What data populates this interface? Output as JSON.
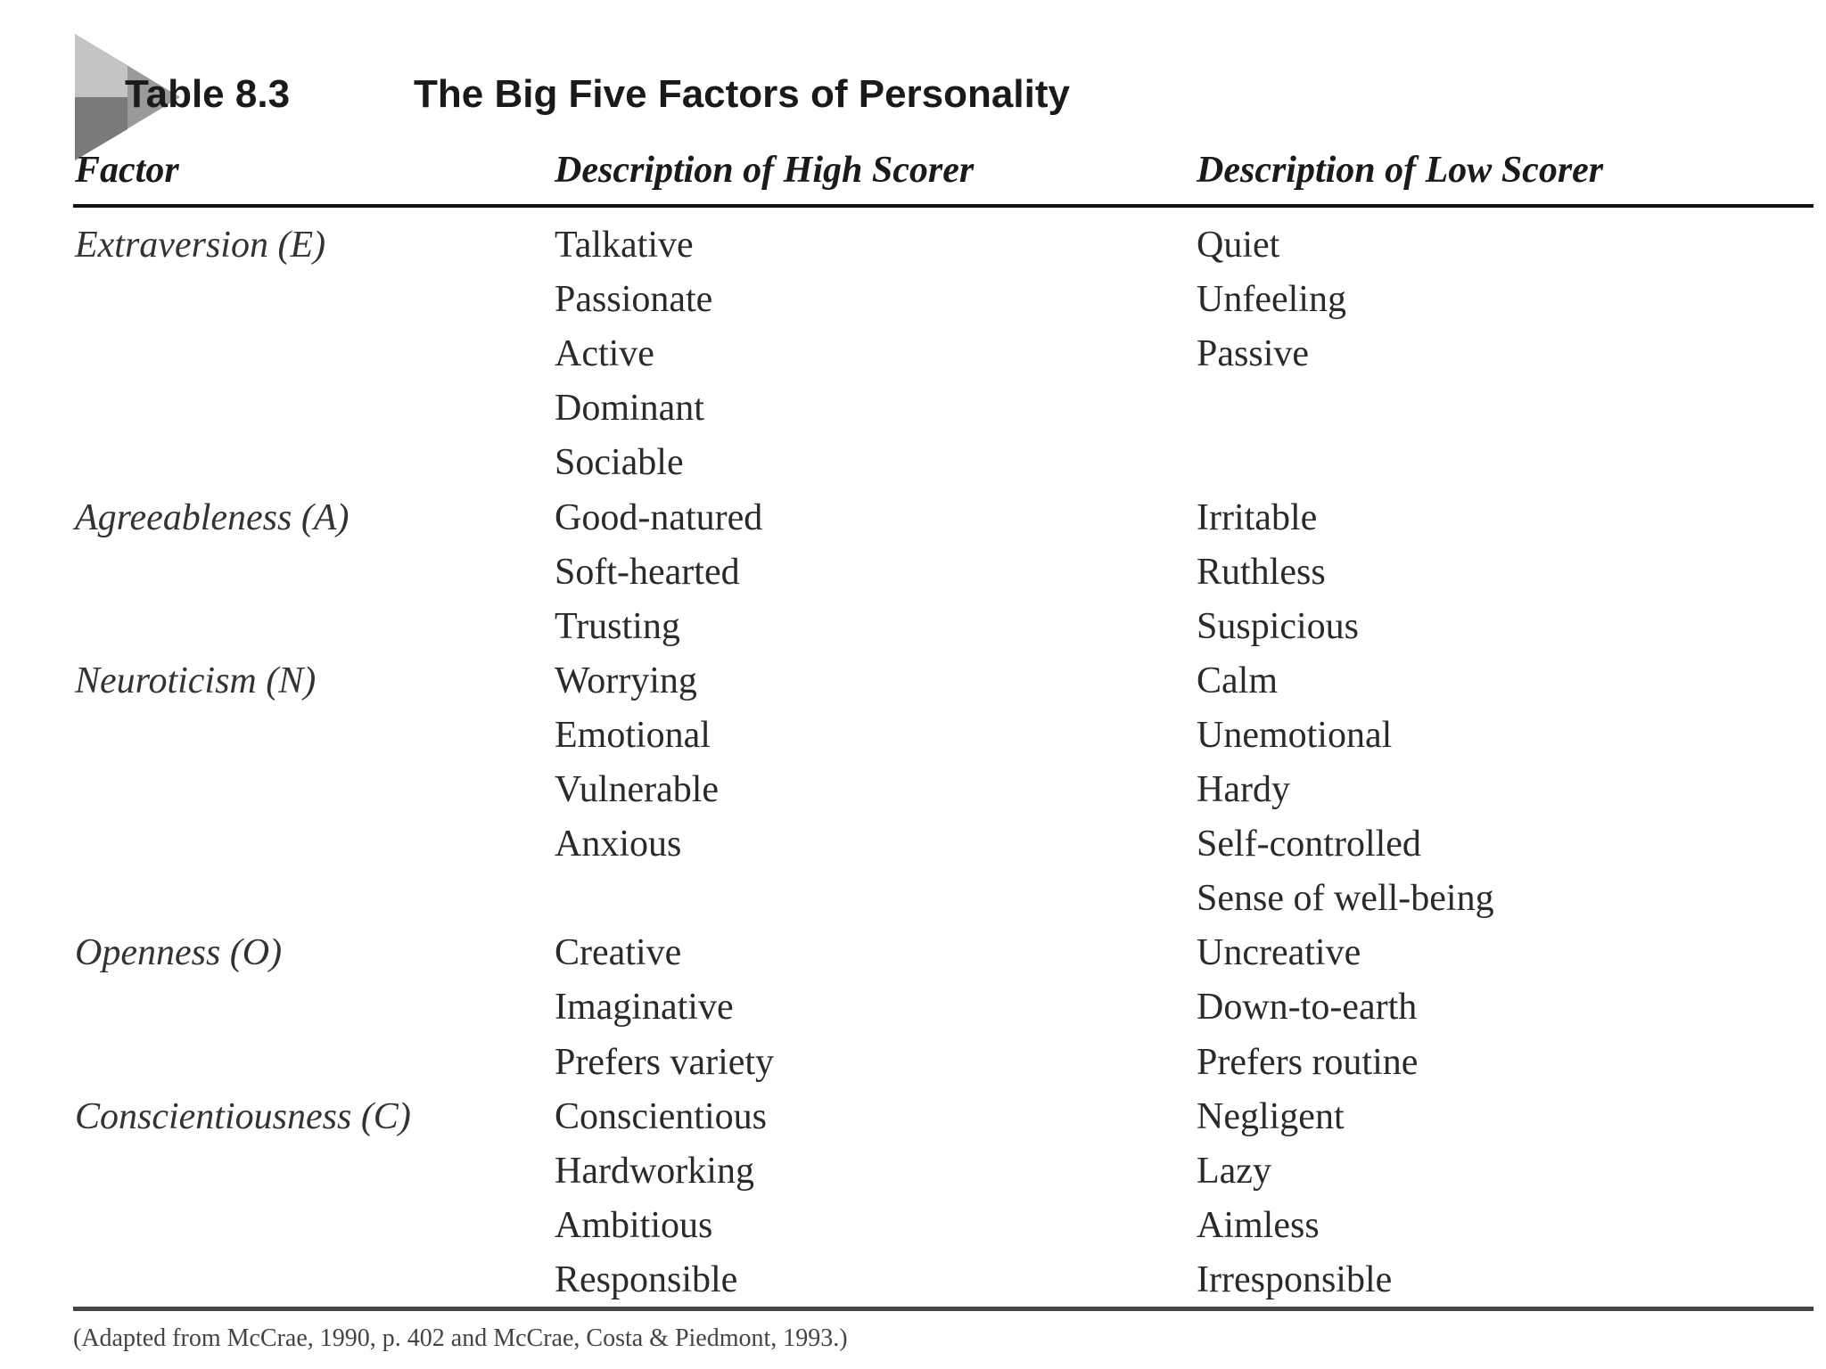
{
  "table": {
    "number": "Table 8.3",
    "title": "The Big Five Factors of Personality",
    "headers": {
      "factor": "Factor",
      "high": "Description of High Scorer",
      "low": "Description of Low Scorer"
    },
    "rows": [
      {
        "factor": "Extraversion (E)",
        "high": "Talkative",
        "low": "Quiet"
      },
      {
        "factor": "",
        "high": "Passionate",
        "low": "Unfeeling"
      },
      {
        "factor": "",
        "high": "Active",
        "low": "Passive"
      },
      {
        "factor": "",
        "high": "Dominant",
        "low": ""
      },
      {
        "factor": "",
        "high": "Sociable",
        "low": ""
      },
      {
        "factor": "Agreeableness (A)",
        "high": "Good-natured",
        "low": "Irritable"
      },
      {
        "factor": "",
        "high": "Soft-hearted",
        "low": "Ruthless"
      },
      {
        "factor": "",
        "high": "Trusting",
        "low": "Suspicious"
      },
      {
        "factor": "Neuroticism (N)",
        "high": "Worrying",
        "low": "Calm"
      },
      {
        "factor": "",
        "high": "Emotional",
        "low": "Unemotional"
      },
      {
        "factor": "",
        "high": "Vulnerable",
        "low": "Hardy"
      },
      {
        "factor": "",
        "high": "Anxious",
        "low": "Self-controlled"
      },
      {
        "factor": "",
        "high": "",
        "low": "Sense of well-being"
      },
      {
        "factor": "Openness (O)",
        "high": "Creative",
        "low": "Uncreative"
      },
      {
        "factor": "",
        "high": "Imaginative",
        "low": "Down-to-earth"
      },
      {
        "factor": "",
        "high": "Prefers variety",
        "low": "Prefers routine"
      },
      {
        "factor": "Conscientiousness (C)",
        "high": "Conscientious",
        "low": "Negligent"
      },
      {
        "factor": "",
        "high": "Hardworking",
        "low": "Lazy"
      },
      {
        "factor": "",
        "high": "Ambitious",
        "low": "Aimless"
      },
      {
        "factor": "",
        "high": "Responsible",
        "low": "Irresponsible"
      }
    ],
    "footnote": "(Adapted from McCrae, 1990, p. 402 and McCrae, Costa & Piedmont, 1993.)"
  }
}
